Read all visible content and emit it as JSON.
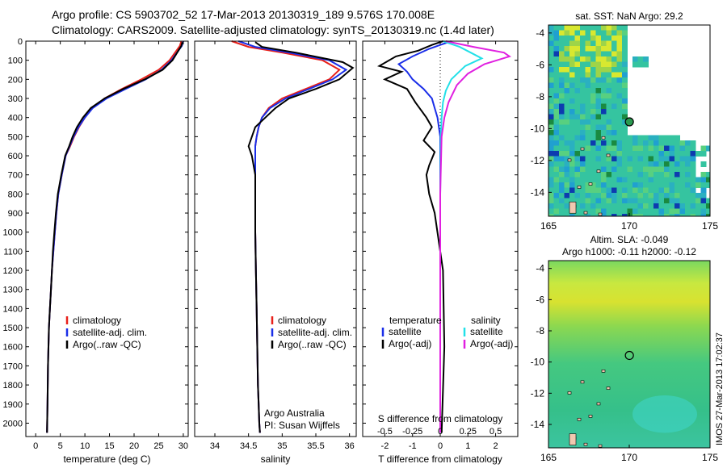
{
  "titles": {
    "line1": "Argo profile: CS 5903702_52 17-Mar-2013 20130319_189 9.576S 170.008E",
    "line2": "Climatology: CARS2009. Satellite-adjusted climatology: synTS_20130319.nc (1.4d later)",
    "sst_map": "sat. SST: NaN Argo: 29.2",
    "sla_map_line1": "Altim. SLA: -0.049",
    "sla_map_line2": "Argo h1000: -0.11 h2000: -0.12",
    "footer": "IMOS 27-Mar-2013 17:02:37"
  },
  "chart_data": [
    {
      "type": "line",
      "name": "temperature-profile",
      "xlabel": "temperature (deg C)",
      "ylabel": "",
      "xlim": [
        -2,
        31
      ],
      "ylim": [
        2070,
        0
      ],
      "xticks": [
        0,
        5,
        10,
        15,
        20,
        25,
        30
      ],
      "yticks": [
        0,
        100,
        200,
        300,
        400,
        500,
        600,
        700,
        800,
        900,
        1000,
        1100,
        1200,
        1300,
        1400,
        1500,
        1600,
        1700,
        1800,
        1900,
        2000
      ],
      "legend": [
        "climatology",
        "satellite-adj. clim.",
        "Argo(..raw -QC)"
      ],
      "colors": [
        "#e8201a",
        "#1a2ee8",
        "#000000"
      ],
      "series": [
        {
          "name": "climatology",
          "x": [
            29.6,
            29.3,
            28.6,
            27.2,
            25.0,
            21.5,
            17.5,
            14.0,
            11.5,
            10.0,
            8.8,
            7.8,
            7.0,
            6.1,
            5.3,
            4.6,
            4.2,
            3.9,
            3.6,
            3.3,
            3.1,
            2.9,
            2.7,
            2.5,
            2.4,
            2.3
          ],
          "y": [
            0,
            25,
            50,
            100,
            150,
            200,
            250,
            300,
            350,
            400,
            450,
            500,
            550,
            600,
            700,
            800,
            900,
            1000,
            1100,
            1200,
            1300,
            1400,
            1500,
            1700,
            1900,
            2050
          ]
        },
        {
          "name": "satellite-adj. clim.",
          "x": [
            30.0,
            29.7,
            29.0,
            27.6,
            25.6,
            22.4,
            18.3,
            14.4,
            11.6,
            10.0,
            8.7,
            7.7,
            6.9,
            6.1,
            5.3,
            4.6,
            4.2,
            3.9,
            3.6,
            3.3,
            3.1,
            2.9,
            2.7,
            2.5,
            2.4,
            2.3
          ],
          "y": [
            0,
            25,
            50,
            100,
            150,
            200,
            250,
            300,
            350,
            400,
            450,
            500,
            550,
            600,
            700,
            800,
            900,
            1000,
            1100,
            1200,
            1300,
            1400,
            1500,
            1700,
            1900,
            2050
          ]
        },
        {
          "name": "Argo(..raw -QC)",
          "x": [
            29.8,
            29.6,
            29.0,
            27.8,
            25.8,
            22.2,
            17.8,
            14.0,
            11.2,
            9.6,
            8.4,
            7.5,
            6.8,
            6.0,
            5.2,
            4.5,
            4.1,
            3.8,
            3.5,
            3.3,
            3.1,
            2.9,
            2.7,
            2.5,
            2.4,
            2.3
          ],
          "y": [
            5,
            25,
            50,
            100,
            150,
            200,
            250,
            300,
            350,
            400,
            450,
            500,
            550,
            600,
            700,
            800,
            900,
            1000,
            1100,
            1200,
            1300,
            1400,
            1500,
            1700,
            1900,
            2050
          ]
        }
      ]
    },
    {
      "type": "line",
      "name": "salinity-profile",
      "xlabel": "salinity",
      "ylabel": "",
      "xlim": [
        33.7,
        36.1
      ],
      "ylim": [
        2070,
        0
      ],
      "xticks": [
        34,
        34.5,
        35,
        35.5,
        36
      ],
      "xticklabels": [
        "34",
        "34.5",
        "35",
        "35.5",
        "36"
      ],
      "legend": [
        "climatology",
        "satellite-adj. clim.",
        "Argo(..raw -QC)"
      ],
      "colors": [
        "#e8201a",
        "#1a2ee8",
        "#000000"
      ],
      "annotation": [
        "Argo Australia",
        "PI: Susan Wijffels"
      ],
      "series": [
        {
          "name": "climatology",
          "x": [
            34.25,
            34.5,
            35.0,
            35.6,
            35.85,
            35.7,
            35.35,
            35.0,
            34.8,
            34.7,
            34.65,
            34.62,
            34.6,
            34.6,
            34.6,
            34.6,
            34.6,
            34.61,
            34.62,
            34.63,
            34.64,
            34.65,
            34.66,
            34.67
          ],
          "y": [
            0,
            30,
            60,
            100,
            150,
            200,
            250,
            300,
            350,
            400,
            450,
            500,
            550,
            600,
            700,
            800,
            1000,
            1200,
            1400,
            1600,
            1800,
            1900,
            2000,
            2050
          ]
        },
        {
          "name": "satellite-adj. clim.",
          "x": [
            34.35,
            34.6,
            35.1,
            35.7,
            35.95,
            35.75,
            35.4,
            35.05,
            34.82,
            34.7,
            34.65,
            34.62,
            34.6,
            34.6,
            34.6,
            34.6,
            34.6,
            34.61,
            34.62,
            34.63,
            34.64,
            34.65,
            34.66,
            34.67
          ],
          "y": [
            0,
            30,
            60,
            100,
            150,
            200,
            250,
            300,
            350,
            400,
            450,
            500,
            550,
            600,
            700,
            800,
            1000,
            1200,
            1400,
            1600,
            1800,
            1900,
            2000,
            2050
          ]
        },
        {
          "name": "Argo(..raw -QC)",
          "x": [
            34.6,
            34.7,
            35.2,
            35.9,
            36.05,
            35.85,
            35.5,
            35.1,
            34.9,
            34.75,
            34.6,
            34.55,
            34.5,
            34.55,
            34.6,
            34.6,
            34.6,
            34.61,
            34.62,
            34.63,
            34.64,
            34.65,
            34.66,
            34.67
          ],
          "y": [
            5,
            30,
            60,
            110,
            140,
            200,
            250,
            300,
            350,
            400,
            450,
            500,
            550,
            600,
            700,
            800,
            1000,
            1200,
            1400,
            1600,
            1800,
            1900,
            2000,
            2050
          ]
        }
      ]
    },
    {
      "type": "line",
      "name": "difference-profile",
      "xlabel": "T difference from climatology",
      "xlabel_top": "S difference from climatology",
      "xlim": [
        -2.8,
        2.8
      ],
      "ylim": [
        2070,
        0
      ],
      "xticks": [
        -2,
        -1,
        0,
        1,
        2
      ],
      "top_ticks": [
        -0.5,
        -0.25,
        0,
        0.25,
        0.5
      ],
      "top_ticklabels": [
        "-0.5",
        "-0.25",
        "0",
        "0.25",
        "0.5"
      ],
      "legend_titles": [
        "temperature",
        "salinity"
      ],
      "legend": [
        "satellite",
        "Argo(-adj)",
        "satellite",
        "Argo(-adj)"
      ],
      "colors": [
        "#1a2ee8",
        "#000000",
        "#22e0e8",
        "#e020e0"
      ],
      "series": [
        {
          "name": "satellite",
          "kind": "T",
          "x": [
            0.4,
            0.0,
            -0.4,
            -1.0,
            -1.5,
            -1.2,
            -1.0,
            -0.6,
            -0.3,
            -0.2,
            -0.1,
            0,
            0,
            0,
            0,
            0
          ],
          "y": [
            0,
            20,
            40,
            80,
            120,
            160,
            200,
            250,
            300,
            350,
            400,
            500,
            600,
            800,
            1200,
            2050
          ]
        },
        {
          "name": "Argo(-adj)",
          "kind": "T",
          "x": [
            0.1,
            -0.3,
            -0.8,
            -1.6,
            -2.2,
            -1.4,
            -2.0,
            -1.2,
            -0.9,
            -0.5,
            -0.3,
            -0.6,
            -0.2,
            -0.4,
            -0.5,
            -0.4,
            -0.2,
            0.1,
            0.15,
            0.05
          ],
          "y": [
            0,
            20,
            50,
            80,
            130,
            160,
            200,
            250,
            320,
            400,
            450,
            520,
            580,
            650,
            700,
            800,
            900,
            1200,
            1600,
            2050
          ]
        },
        {
          "name": "satellite",
          "kind": "S",
          "x": [
            0.1,
            0.7,
            1.1,
            1.5,
            0.9,
            0.4,
            0.2,
            0.1,
            0.05,
            0.02,
            0,
            0
          ],
          "y": [
            0,
            30,
            60,
            90,
            130,
            200,
            260,
            320,
            400,
            500,
            800,
            2050
          ]
        },
        {
          "name": "Argo(-adj)",
          "kind": "S",
          "x": [
            0.2,
            1.2,
            2.3,
            2.5,
            1.6,
            1.0,
            0.6,
            0.3,
            0.15,
            0.05,
            0,
            0
          ],
          "y": [
            0,
            30,
            60,
            80,
            120,
            170,
            230,
            320,
            400,
            500,
            800,
            2050
          ]
        }
      ]
    },
    {
      "type": "heatmap",
      "name": "sst-map",
      "xlim": [
        165,
        175
      ],
      "ylim": [
        -15.5,
        -3.5
      ],
      "xticks": [
        165,
        170,
        175
      ],
      "yticks": [
        -4,
        -6,
        -8,
        -10,
        -12,
        -14
      ],
      "argo_position": [
        170.008,
        -9.576
      ]
    },
    {
      "type": "heatmap",
      "name": "sla-map",
      "xlim": [
        165,
        175
      ],
      "ylim": [
        -15.5,
        -3.5
      ],
      "xticks": [
        165,
        170,
        175
      ],
      "yticks": [
        -4,
        -6,
        -8,
        -10,
        -12,
        -14
      ],
      "argo_position": [
        170.008,
        -9.576
      ]
    }
  ]
}
